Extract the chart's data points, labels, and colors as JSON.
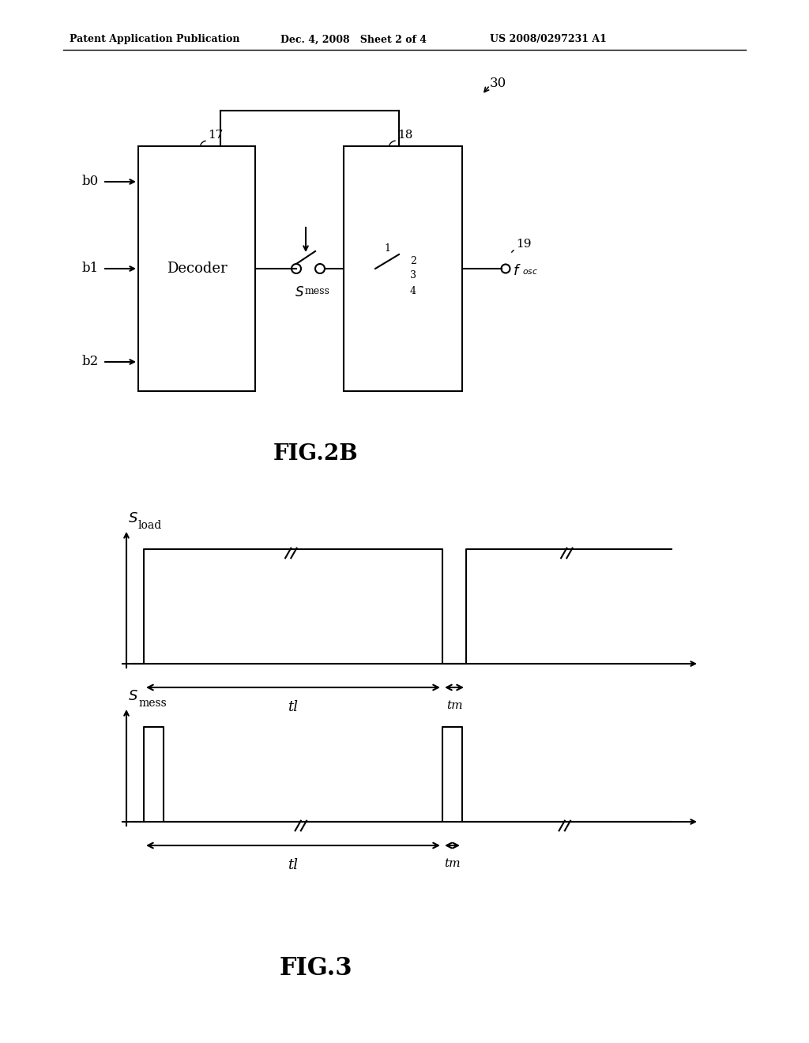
{
  "bg_color": "#ffffff",
  "header_left": "Patent Application Publication",
  "header_mid": "Dec. 4, 2008   Sheet 2 of 4",
  "header_right": "US 2008/0297231 A1",
  "fig2b_label": "FIG.2B",
  "fig3_label": "FIG.3"
}
